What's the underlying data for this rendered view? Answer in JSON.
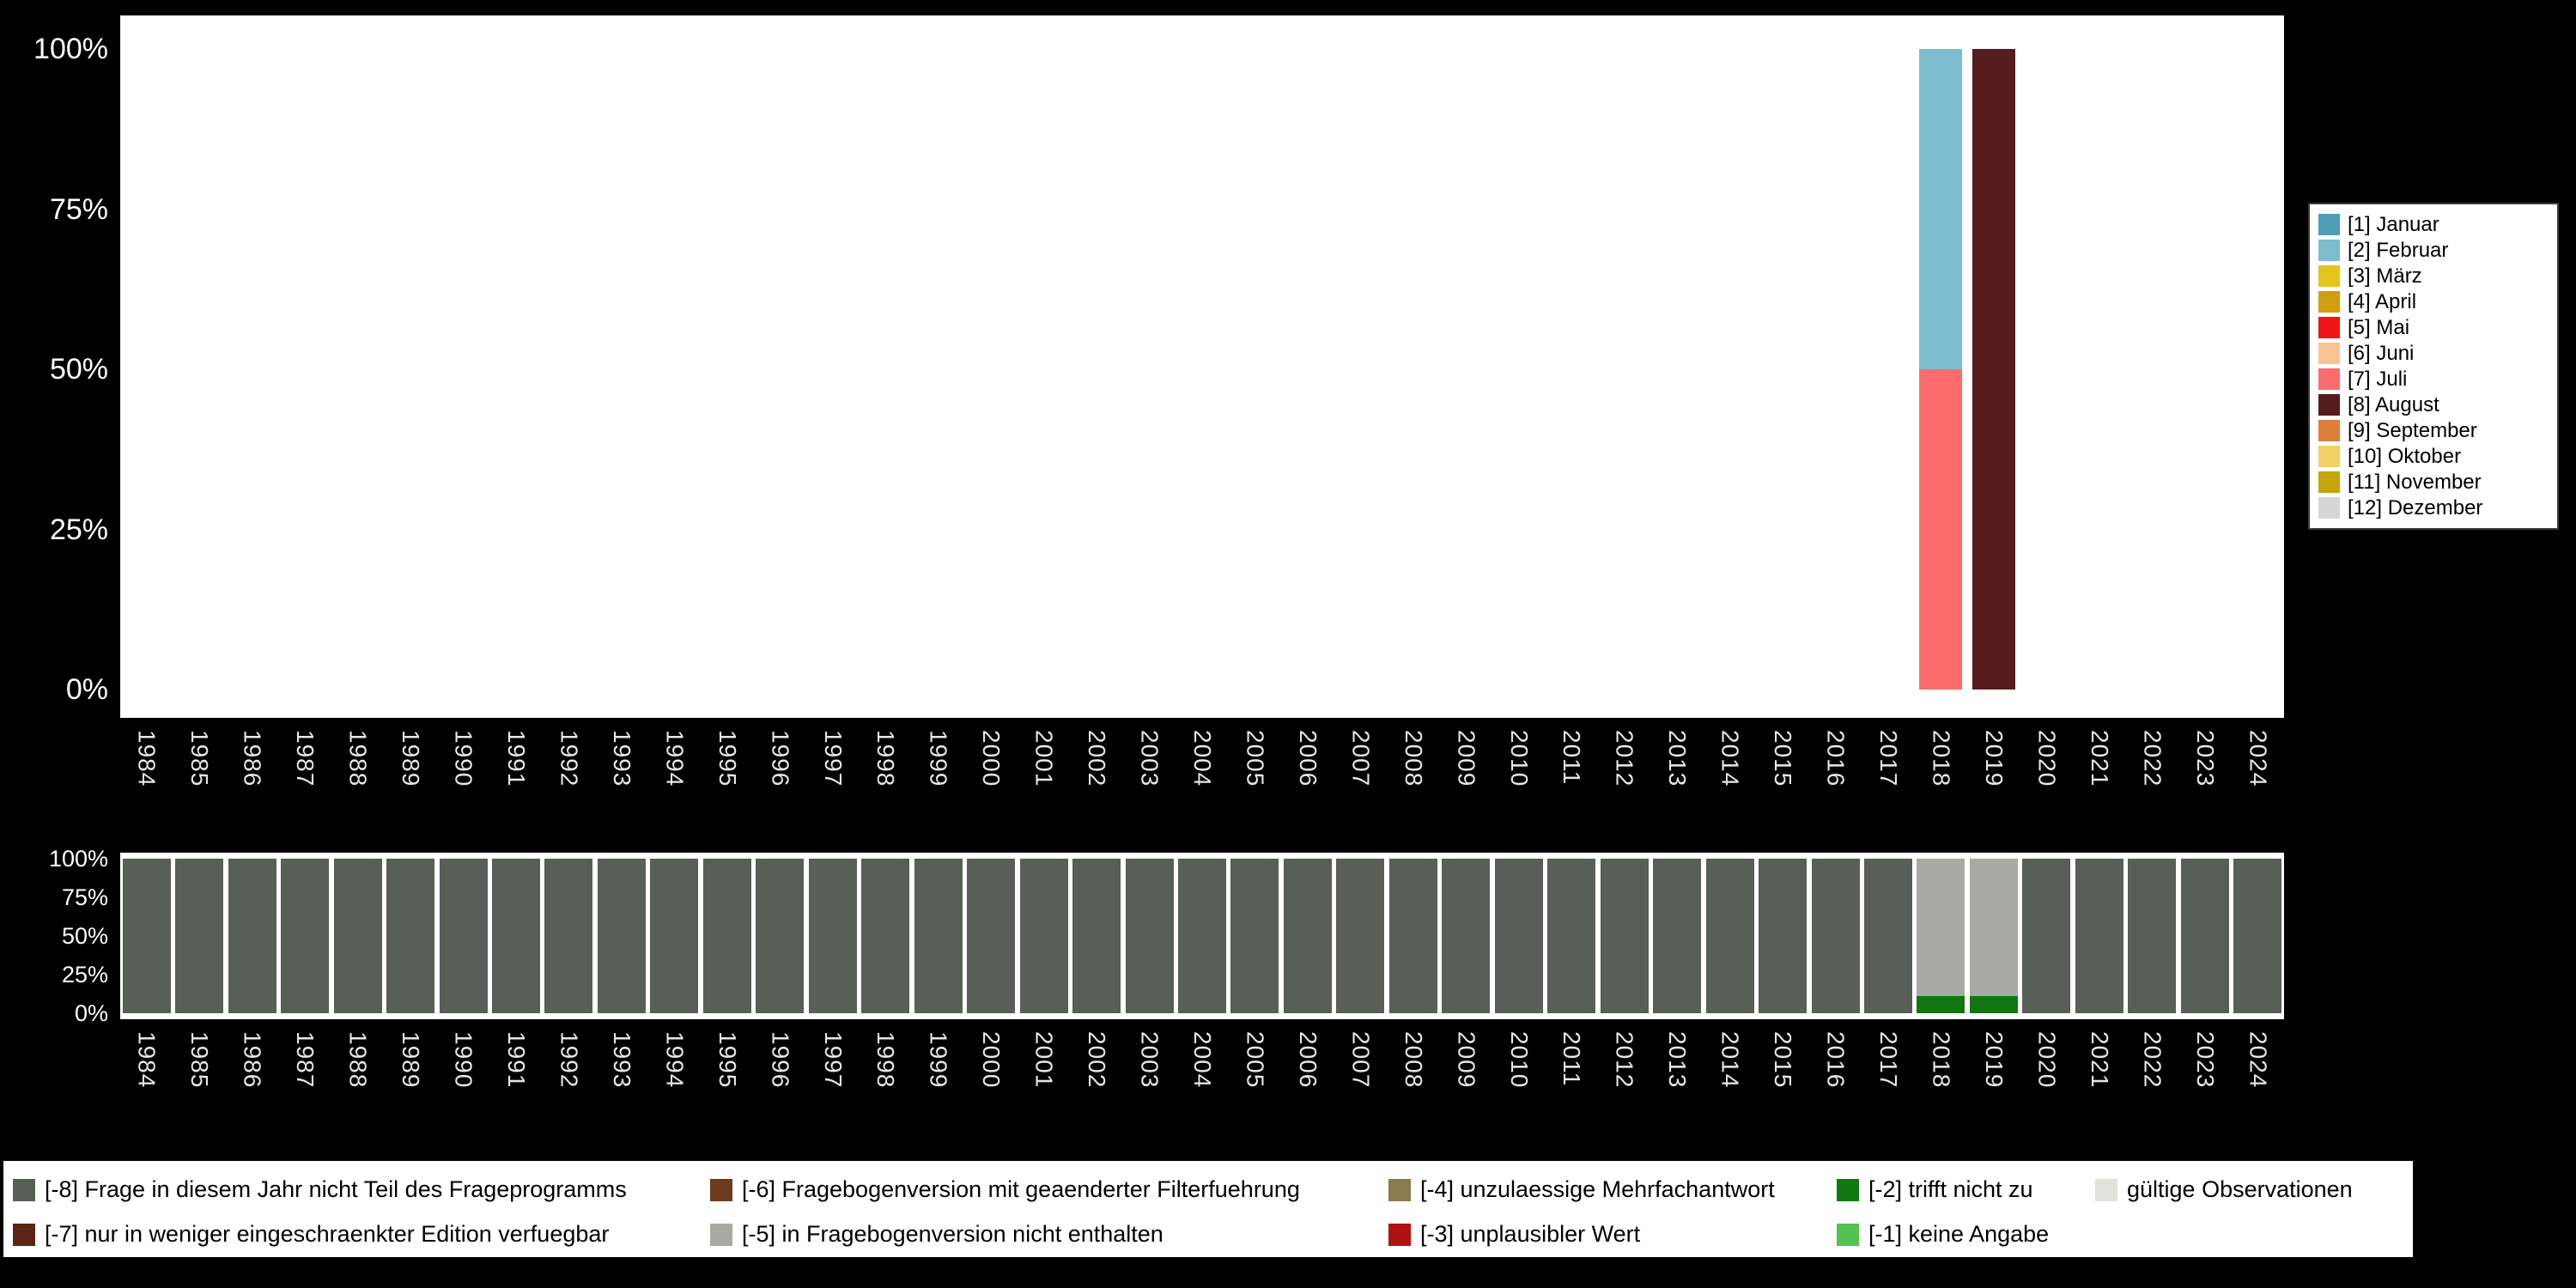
{
  "chart_data": [
    {
      "id": "interview-month-by-year",
      "type": "bar",
      "stacked": true,
      "ylim": [
        0,
        100
      ],
      "grid": false,
      "legend_position": "right",
      "y_ticks": [
        {
          "label": "100%",
          "value": 100
        },
        {
          "label": "75%",
          "value": 75
        },
        {
          "label": "50%",
          "value": 50
        },
        {
          "label": "25%",
          "value": 25
        },
        {
          "label": "0%",
          "value": 0
        }
      ],
      "categories": [
        1984,
        1985,
        1986,
        1987,
        1988,
        1989,
        1990,
        1991,
        1992,
        1993,
        1994,
        1995,
        1996,
        1997,
        1998,
        1999,
        2000,
        2001,
        2002,
        2003,
        2004,
        2005,
        2006,
        2007,
        2008,
        2009,
        2010,
        2011,
        2012,
        2013,
        2014,
        2015,
        2016,
        2017,
        2018,
        2019,
        2020,
        2021,
        2022,
        2023,
        2024
      ],
      "bars": [
        {
          "category": 2018,
          "segments": [
            {
              "label": "[7] Juli",
              "value": 50
            },
            {
              "label": "[2] Februar",
              "value": 50
            }
          ]
        },
        {
          "category": 2019,
          "segments": [
            {
              "label": "[8] August",
              "value": 100
            }
          ]
        }
      ]
    },
    {
      "id": "missing-values-by-year",
      "type": "bar",
      "stacked": true,
      "ylim": [
        0,
        100
      ],
      "grid": false,
      "legend_position": "bottom",
      "y_ticks": [
        {
          "label": "100%",
          "value": 100
        },
        {
          "label": "75%",
          "value": 75
        },
        {
          "label": "50%",
          "value": 50
        },
        {
          "label": "25%",
          "value": 25
        },
        {
          "label": "0%",
          "value": 0
        }
      ],
      "categories": [
        1984,
        1985,
        1986,
        1987,
        1988,
        1989,
        1990,
        1991,
        1992,
        1993,
        1994,
        1995,
        1996,
        1997,
        1998,
        1999,
        2000,
        2001,
        2002,
        2003,
        2004,
        2005,
        2006,
        2007,
        2008,
        2009,
        2010,
        2011,
        2012,
        2013,
        2014,
        2015,
        2016,
        2017,
        2018,
        2019,
        2020,
        2021,
        2022,
        2023,
        2024
      ],
      "default_segments": [
        {
          "label": "[-8] Frage in diesem Jahr nicht Teil des Frageprogramms",
          "value": 100
        }
      ],
      "bars": [
        {
          "category": 2018,
          "segments": [
            {
              "label": "[-2] trifft nicht zu",
              "value": 11
            },
            {
              "label": "[-5] in Fragebogenversion nicht enthalten",
              "value": 89
            }
          ]
        },
        {
          "category": 2019,
          "segments": [
            {
              "label": "[-2] trifft nicht zu",
              "value": 11
            },
            {
              "label": "[-5] in Fragebogenversion nicht enthalten",
              "value": 89
            }
          ]
        }
      ]
    }
  ],
  "month_legend": [
    {
      "label": "[1] Januar",
      "color": "#4E9DB8"
    },
    {
      "label": "[2] Februar",
      "color": "#7CBCCF"
    },
    {
      "label": "[3] März",
      "color": "#E3C51C"
    },
    {
      "label": "[4] April",
      "color": "#D19E10"
    },
    {
      "label": "[5] Mai",
      "color": "#F01414"
    },
    {
      "label": "[6] Juni",
      "color": "#F9C491"
    },
    {
      "label": "[7] Juli",
      "color": "#FC6C6C"
    },
    {
      "label": "[8] August",
      "color": "#571C1E"
    },
    {
      "label": "[9] September",
      "color": "#DD7E3A"
    },
    {
      "label": "[10] Oktober",
      "color": "#F0D264"
    },
    {
      "label": "[11] November",
      "color": "#C6A50A"
    },
    {
      "label": "[12] Dezember",
      "color": "#D6D6D6"
    }
  ],
  "missing_legend": {
    "rows": [
      [
        {
          "label": "[-8] Frage in diesem Jahr nicht Teil des Frageprogramms",
          "color": "#575F56"
        },
        {
          "label": "[-6] Fragebogenversion mit geaenderter Filterfuehrung",
          "color": "#6D3B1F"
        },
        {
          "label": "[-4] unzulaessige Mehrfachantwort",
          "color": "#8C7A50"
        },
        {
          "label": "[-2] trifft nicht zu",
          "color": "#117711"
        },
        {
          "label": "gültige Observationen",
          "color": "#DEE4DC"
        }
      ],
      [
        {
          "label": "[-7] nur in weniger eingeschraenkter Edition verfuegbar",
          "color": "#5C2414"
        },
        {
          "label": "[-5] in Fragebogenversion nicht enthalten",
          "color": "#A6ABA3"
        },
        {
          "label": "[-3] unplausibler Wert",
          "color": "#B01212"
        },
        {
          "label": "[-1] keine Angabe",
          "color": "#53C253"
        }
      ]
    ]
  },
  "colors": {
    "page_background": "#000000",
    "panel_background": "#ffffff",
    "axis_text": "#e6e6e6",
    "legend_background": "#ffffff",
    "legend_text": "#000000"
  }
}
